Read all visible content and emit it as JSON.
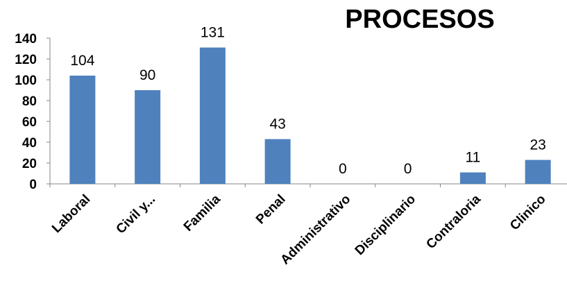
{
  "chart_data": {
    "type": "bar",
    "title": "PROCESOS",
    "categories": [
      "Laboral",
      "Civil y...",
      "Familia",
      "Penal",
      "Administrativo",
      "Disciplinario",
      "Contraloria",
      "Clinico"
    ],
    "values": [
      104,
      90,
      131,
      43,
      0,
      0,
      11,
      23
    ],
    "data_labels": [
      "104",
      "90",
      "131",
      "43",
      "0",
      "0",
      "11",
      "23"
    ],
    "ylim": [
      0,
      140
    ],
    "yticks": [
      0,
      20,
      40,
      60,
      80,
      100,
      120,
      140
    ],
    "grid": false,
    "legend": "none",
    "bar_color": "#4F81BD",
    "axis_color": "#868686"
  }
}
